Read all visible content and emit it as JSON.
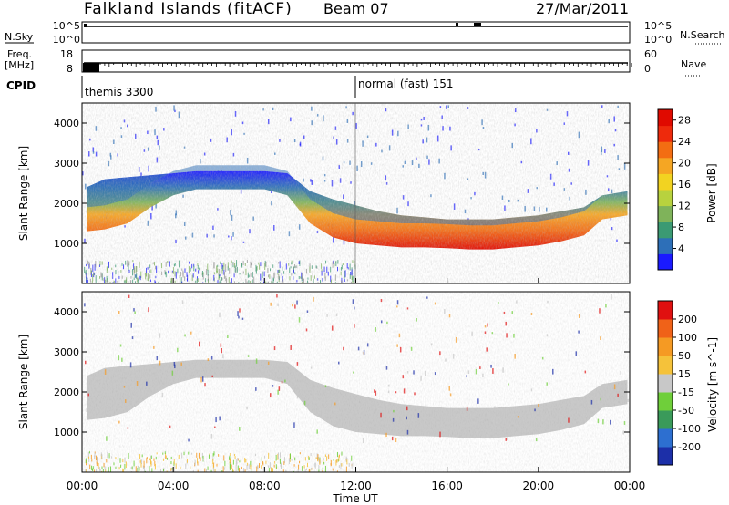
{
  "header": {
    "title": "Falkland Islands (fitACF)",
    "beam": "Beam 07",
    "date": "27/Mar/2011"
  },
  "top_panels": {
    "nsky": {
      "label": "N.Sky",
      "ticks": [
        "10^5",
        "10^0"
      ]
    },
    "nsearch": {
      "label": "N.Search",
      "ticks": [
        "10^5",
        "10^0"
      ]
    },
    "freq": {
      "label_line1": "Freq.",
      "label_line2": "[MHz]",
      "ticks": [
        "18",
        "8"
      ]
    },
    "nave": {
      "label": "Nave",
      "ticks": [
        "60",
        "0"
      ]
    },
    "cpid": {
      "label": "CPID",
      "segments": [
        {
          "name": "themis 3300",
          "start": "00:00"
        },
        {
          "name": "normal (fast) 151",
          "start": "12:00"
        }
      ]
    }
  },
  "x_axis": {
    "label": "Time UT",
    "ticks": [
      "00:00",
      "04:00",
      "08:00",
      "12:00",
      "16:00",
      "20:00",
      "00:00"
    ]
  },
  "chart_data": [
    {
      "type": "heatmap",
      "name": "power",
      "ylabel": "Slant Range [km]",
      "yticks": [
        "1000",
        "2000",
        "3000",
        "4000"
      ],
      "ylim": [
        0,
        4500
      ],
      "xlim": [
        0,
        24
      ],
      "colorbar": {
        "label": "Power [dB]",
        "ticks": [
          "4",
          "8",
          "12",
          "16",
          "20",
          "24",
          "28"
        ],
        "range": [
          0,
          30
        ],
        "colors": [
          "#1a1aff",
          "#2d6fb8",
          "#3b9a73",
          "#7fb35a",
          "#b8d23e",
          "#f2d321",
          "#f5a623",
          "#f36d12",
          "#ee2a0c",
          "#e00a00"
        ]
      },
      "echo_band": {
        "times_hr": [
          0.2,
          1,
          2,
          3,
          4,
          5,
          6,
          7,
          8,
          9,
          10,
          11,
          12,
          13,
          14,
          15,
          16,
          17,
          18,
          19,
          20,
          21,
          22,
          22.8,
          23.9
        ],
        "lower_km": [
          1300,
          1350,
          1500,
          1900,
          2200,
          2350,
          2350,
          2350,
          2350,
          2200,
          1500,
          1150,
          1000,
          950,
          900,
          900,
          880,
          850,
          850,
          900,
          950,
          1050,
          1200,
          1600,
          1700
        ],
        "upper_km": [
          2400,
          2600,
          2650,
          2700,
          2750,
          2800,
          2800,
          2800,
          2800,
          2750,
          2300,
          2100,
          1950,
          1800,
          1700,
          1650,
          1600,
          1600,
          1600,
          1650,
          1700,
          1800,
          1900,
          2200,
          2300
        ]
      }
    },
    {
      "type": "heatmap",
      "name": "velocity",
      "ylabel": "Slant Range [km]",
      "yticks": [
        "1000",
        "2000",
        "3000",
        "4000"
      ],
      "ylim": [
        0,
        4500
      ],
      "xlim": [
        0,
        24
      ],
      "colorbar": {
        "label": "Velocity [m s^-1]",
        "ticks": [
          "200",
          "100",
          "50",
          "15",
          "-15",
          "-50",
          "-100",
          "-200"
        ],
        "colors": [
          "#1c2fa8",
          "#2d6fd0",
          "#3a9a5a",
          "#6fcf3a",
          "#c8c8c8",
          "#f5c23a",
          "#f59a23",
          "#f06218",
          "#e01010"
        ]
      }
    }
  ]
}
